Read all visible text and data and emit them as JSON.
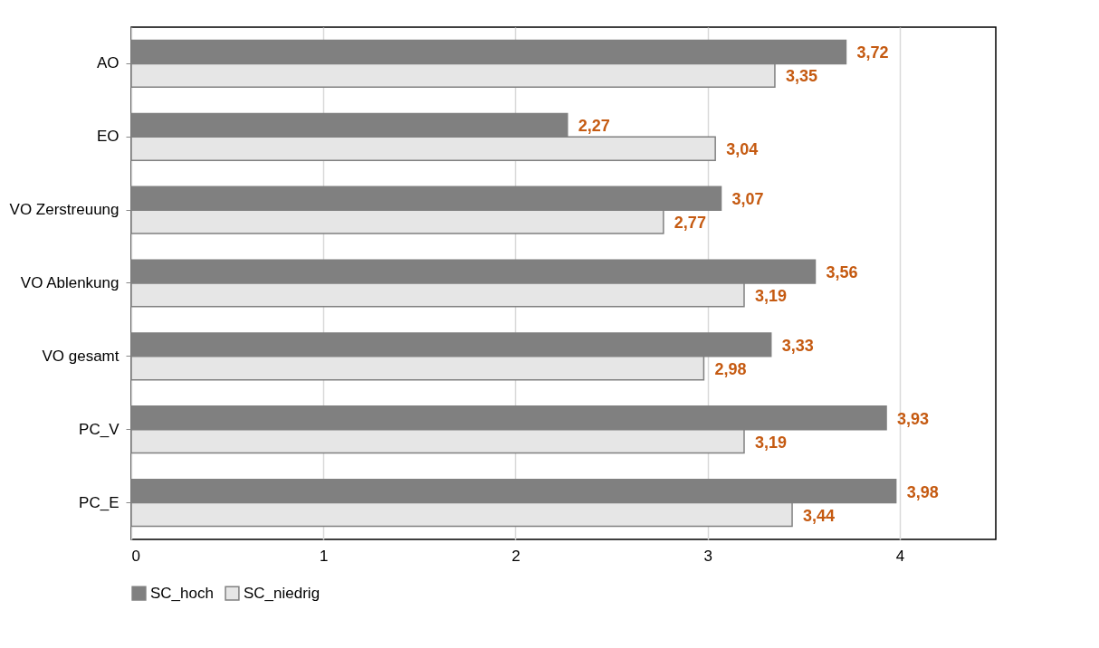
{
  "chart_data": {
    "type": "bar",
    "orientation": "horizontal",
    "categories": [
      "AO",
      "EO",
      "VO Zerstreuung",
      "VO Ablenkung",
      "VO gesamt",
      "PC_V",
      "PC_E"
    ],
    "series": [
      {
        "name": "SC_hoch",
        "color": "#808080",
        "values": [
          3.72,
          2.27,
          3.07,
          3.56,
          3.33,
          3.93,
          3.98
        ],
        "value_labels": [
          "3,72",
          "2,27",
          "3,07",
          "3,56",
          "3,33",
          "3,93",
          "3,98"
        ]
      },
      {
        "name": "SC_niedrig",
        "color": "#e6e6e6",
        "values": [
          3.35,
          3.04,
          2.77,
          3.19,
          2.98,
          3.19,
          3.44
        ],
        "value_labels": [
          "3,35",
          "3,04",
          "2,77",
          "3,19",
          "2,98",
          "3,19",
          "3,44"
        ]
      }
    ],
    "xlim": [
      0,
      4.5
    ],
    "xticks": [
      0,
      1,
      2,
      3,
      4
    ],
    "grid": "x",
    "legend": "bottom"
  }
}
